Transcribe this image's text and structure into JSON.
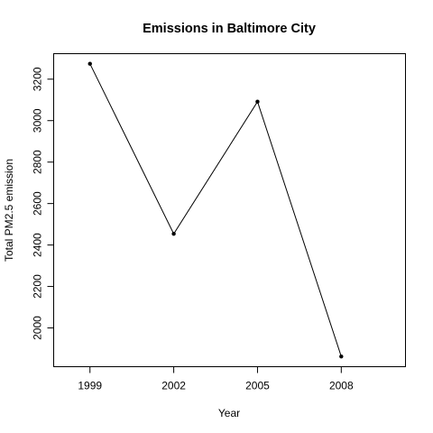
{
  "chart_data": {
    "type": "line",
    "title": "Emissions in Baltimore City",
    "xlabel": "Year",
    "ylabel": "Total PM2.5 emission",
    "categories": [
      "1999",
      "2002",
      "2005",
      "2008"
    ],
    "series": [
      {
        "values": [
          3274.2,
          2453.9,
          3091.4,
          1862.3
        ]
      }
    ],
    "y_ticks": [
      2000,
      2200,
      2400,
      2600,
      2800,
      3000,
      3200
    ],
    "ylim": [
      1813,
      3323
    ],
    "xlim": [
      1997.7,
      2010.3
    ],
    "grid": false,
    "legend": "none",
    "colors": {
      "line": "#000000",
      "points": "#000000"
    }
  }
}
